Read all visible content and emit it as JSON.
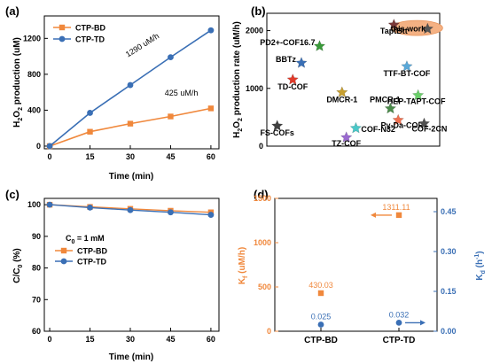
{
  "chart_data": [
    {
      "panel": "(a)",
      "type": "line",
      "xlabel": "Time (min)",
      "ylabel_main": "H",
      "ylabel_sub1": "2",
      "ylabel_mid": "O",
      "ylabel_sub2": "2",
      "ylabel_tail": " production (uM)",
      "xlim": [
        -2,
        63
      ],
      "ylim": [
        -30,
        1450
      ],
      "xticks": [
        0,
        15,
        30,
        45,
        60
      ],
      "yticks": [
        0,
        400,
        800,
        1200
      ],
      "x": [
        0,
        15,
        30,
        45,
        60
      ],
      "series": [
        {
          "name": "CTP-BD",
          "values": [
            0,
            160,
            250,
            330,
            420
          ],
          "color": "#f0883c",
          "marker": "square"
        },
        {
          "name": "CTP-TD",
          "values": [
            0,
            370,
            680,
            990,
            1290
          ],
          "color": "#3a6fb5",
          "marker": "circle"
        }
      ],
      "annotations": [
        {
          "text": "1290 uM/h",
          "x": 35,
          "y": 1100,
          "rotate": -32,
          "color": "#3a6fb5"
        },
        {
          "text": "425 uM/h",
          "x": 49,
          "y": 560,
          "rotate": 0,
          "color": "#f0883c"
        }
      ],
      "legend": "top-left"
    },
    {
      "panel": "(b)",
      "type": "scatter",
      "ylabel_main": "H",
      "ylabel_sub1": "2",
      "ylabel_mid": "O",
      "ylabel_sub2": "2",
      "ylabel_tail": " production rate (uM/h)",
      "ylim": [
        0,
        2300
      ],
      "yticks": [
        0,
        1000,
        2000
      ],
      "xlim": [
        0,
        10
      ],
      "highlight": "this work",
      "points": [
        {
          "name": "TaptBtt",
          "x": 7.35,
          "y": 2100,
          "color": "#7b3a3a"
        },
        {
          "name": "this work",
          "x": 9.3,
          "y": 2030,
          "color": "#555555"
        },
        {
          "name": "PD2+-COF16.7",
          "x": 3.05,
          "y": 1730,
          "color": "#3a9a3a"
        },
        {
          "name": "BBTz",
          "x": 2.0,
          "y": 1440,
          "color": "#3a6fb5"
        },
        {
          "name": "TD-COF",
          "x": 1.5,
          "y": 1150,
          "color": "#e03a2a"
        },
        {
          "name": "TTF-BT-COF",
          "x": 8.1,
          "y": 1380,
          "color": "#5aa8d8"
        },
        {
          "name": "DMCR-1",
          "x": 4.35,
          "y": 930,
          "color": "#c8a030"
        },
        {
          "name": "PMCR-1",
          "x": 7.15,
          "y": 650,
          "color": "#4a8a4a"
        },
        {
          "name": "HEP-TAPT-COF",
          "x": 8.75,
          "y": 880,
          "color": "#6ad06a"
        },
        {
          "name": "FS-COFs",
          "x": 0.6,
          "y": 350,
          "color": "#404040"
        },
        {
          "name": "COF-N32",
          "x": 5.15,
          "y": 310,
          "color": "#4ac8c8"
        },
        {
          "name": "TZ-COF",
          "x": 4.6,
          "y": 150,
          "color": "#9a6ad0"
        },
        {
          "name": "Py-Da-COF",
          "x": 7.6,
          "y": 450,
          "color": "#f07050"
        },
        {
          "name": "COF-2CN",
          "x": 9.1,
          "y": 390,
          "color": "#505050"
        }
      ]
    },
    {
      "panel": "(c)",
      "type": "line",
      "xlabel": "Time (min)",
      "ylabel_main": "C/C",
      "ylabel_sub": "0",
      "ylabel_tail": " (%)",
      "xlim": [
        -2,
        63
      ],
      "ylim": [
        60,
        102
      ],
      "xticks": [
        0,
        15,
        30,
        45,
        60
      ],
      "yticks": [
        60,
        70,
        80,
        90,
        100
      ],
      "x": [
        0,
        15,
        30,
        45,
        60
      ],
      "series": [
        {
          "name": "CTP-BD",
          "values": [
            100,
            99.3,
            98.7,
            98.1,
            97.6
          ],
          "color": "#f0883c",
          "marker": "square"
        },
        {
          "name": "CTP-TD",
          "values": [
            100,
            99.1,
            98.3,
            97.6,
            96.8
          ],
          "color": "#3a6fb5",
          "marker": "circle"
        }
      ],
      "condition_main": "C",
      "condition_sub": "0",
      "condition_tail": " = 1 mM",
      "legend": "center-left"
    },
    {
      "panel": "(d)",
      "type": "scatter",
      "categories": [
        "CTP-BD",
        "CTP-TD"
      ],
      "ylabel_left_main": "K",
      "ylabel_left_sub": "f",
      "ylabel_left_tail": " (uM/h)",
      "ylabel_right_main": "K",
      "ylabel_right_sub": "d",
      "ylabel_right_tail": " (h",
      "ylabel_right_sup": "-1",
      "ylabel_right_close": ")",
      "ylim_left": [
        0,
        1500
      ],
      "yticks_left": [
        0,
        500,
        1000,
        1500
      ],
      "ylim_right": [
        0,
        0.5
      ],
      "yticks_right": [
        "0.00",
        "0.15",
        "0.30",
        "0.45"
      ],
      "yticks_right_values": [
        0,
        0.15,
        0.3,
        0.45
      ],
      "kf": [
        {
          "label": "430.03",
          "value": 430.03
        },
        {
          "label": "1311.11",
          "value": 1311.11
        }
      ],
      "kd": [
        {
          "label": "0.025",
          "value": 0.025
        },
        {
          "label": "0.032",
          "value": 0.032
        }
      ],
      "colors": {
        "kf": "#f0883c",
        "kd": "#3a6fb5"
      }
    }
  ]
}
